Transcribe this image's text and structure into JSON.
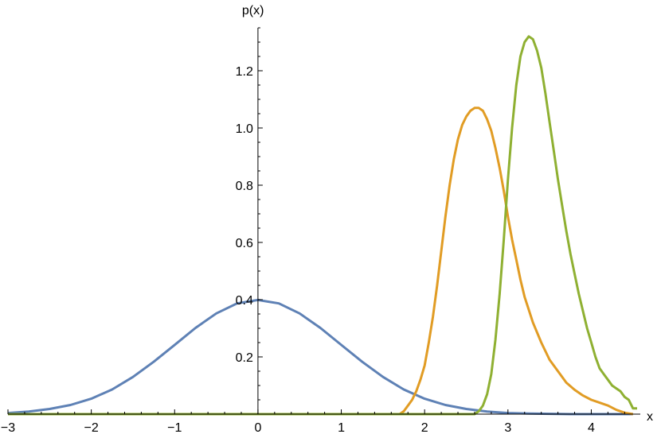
{
  "chart_data": {
    "type": "line",
    "title": "",
    "xlabel": "x",
    "ylabel": "p(x)",
    "xlim": [
      -3,
      4.55
    ],
    "ylim": [
      0,
      1.35
    ],
    "x_ticks": [
      -3,
      -2,
      -1,
      0,
      1,
      2,
      3,
      4
    ],
    "x_tick_labels": [
      "−3",
      "−2",
      "−1",
      "0",
      "1",
      "2",
      "3",
      "4"
    ],
    "y_ticks": [
      0.2,
      0.4,
      0.6,
      0.8,
      1.0,
      1.2
    ],
    "y_tick_labels": [
      "0.2",
      "0.4",
      "0.6",
      "0.8",
      "1.0",
      "1.2"
    ],
    "grid": false,
    "legend": "none",
    "series": [
      {
        "color": "#5e81b5",
        "x": [
          -3.0,
          -2.75,
          -2.5,
          -2.25,
          -2.0,
          -1.75,
          -1.5,
          -1.25,
          -1.0,
          -0.75,
          -0.5,
          -0.25,
          0.0,
          0.25,
          0.5,
          0.75,
          1.0,
          1.25,
          1.5,
          1.75,
          2.0,
          2.25,
          2.5,
          2.75,
          3.0,
          3.25,
          3.5,
          3.75,
          4.0,
          4.25,
          4.5
        ],
        "y": [
          0.004,
          0.009,
          0.018,
          0.032,
          0.054,
          0.086,
          0.13,
          0.183,
          0.242,
          0.301,
          0.352,
          0.387,
          0.399,
          0.387,
          0.352,
          0.301,
          0.242,
          0.183,
          0.13,
          0.086,
          0.054,
          0.032,
          0.018,
          0.009,
          0.004,
          0.002,
          0.001,
          0.0,
          0.0,
          0.0,
          0.0
        ]
      },
      {
        "color": "#e19c24",
        "x": [
          -3.0,
          1.7,
          1.75,
          1.8,
          1.85,
          1.9,
          1.95,
          2.0,
          2.05,
          2.1,
          2.15,
          2.2,
          2.25,
          2.3,
          2.35,
          2.4,
          2.45,
          2.5,
          2.55,
          2.6,
          2.65,
          2.7,
          2.75,
          2.8,
          2.85,
          2.9,
          2.95,
          3.0,
          3.05,
          3.1,
          3.15,
          3.2,
          3.3,
          3.4,
          3.5,
          3.6,
          3.7,
          3.8,
          3.9,
          4.0,
          4.1,
          4.2,
          4.3,
          4.4,
          4.5
        ],
        "y": [
          0.0,
          0.0,
          0.01,
          0.03,
          0.05,
          0.08,
          0.12,
          0.17,
          0.25,
          0.34,
          0.45,
          0.57,
          0.69,
          0.8,
          0.89,
          0.96,
          1.01,
          1.04,
          1.06,
          1.07,
          1.07,
          1.06,
          1.03,
          0.99,
          0.93,
          0.86,
          0.78,
          0.69,
          0.61,
          0.54,
          0.47,
          0.41,
          0.32,
          0.25,
          0.19,
          0.15,
          0.11,
          0.085,
          0.065,
          0.05,
          0.04,
          0.03,
          0.015,
          0.005,
          0.0
        ]
      },
      {
        "color": "#8fb032",
        "x": [
          -3.0,
          2.6,
          2.65,
          2.7,
          2.75,
          2.8,
          2.85,
          2.9,
          2.95,
          3.0,
          3.05,
          3.1,
          3.15,
          3.2,
          3.25,
          3.3,
          3.35,
          3.4,
          3.45,
          3.5,
          3.55,
          3.6,
          3.65,
          3.7,
          3.75,
          3.8,
          3.85,
          3.9,
          3.95,
          4.0,
          4.05,
          4.1,
          4.15,
          4.2,
          4.25,
          4.3,
          4.35,
          4.4,
          4.45,
          4.5,
          4.55
        ],
        "y": [
          0.0,
          0.0,
          0.01,
          0.03,
          0.07,
          0.14,
          0.26,
          0.42,
          0.61,
          0.82,
          1.0,
          1.15,
          1.25,
          1.3,
          1.32,
          1.31,
          1.27,
          1.21,
          1.12,
          1.02,
          0.92,
          0.82,
          0.73,
          0.64,
          0.56,
          0.49,
          0.42,
          0.36,
          0.3,
          0.25,
          0.2,
          0.16,
          0.14,
          0.12,
          0.1,
          0.09,
          0.08,
          0.06,
          0.05,
          0.02,
          0.02
        ]
      }
    ]
  }
}
